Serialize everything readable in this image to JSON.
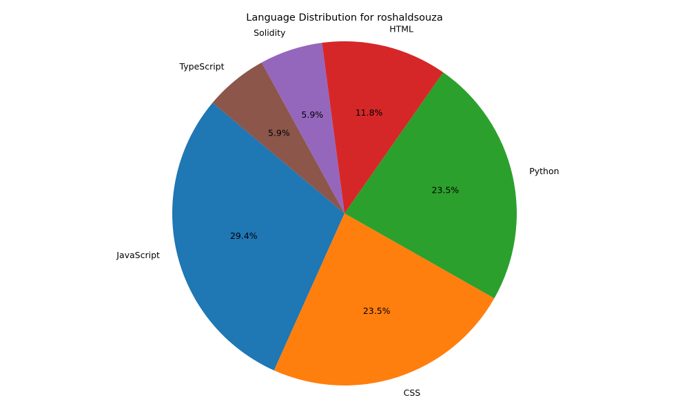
{
  "chart_data": {
    "type": "pie",
    "title": "Language Distribution for roshaldsouza",
    "labels": [
      "JavaScript",
      "CSS",
      "Python",
      "HTML",
      "Solidity",
      "TypeScript"
    ],
    "values": [
      29.4,
      23.5,
      23.5,
      11.8,
      5.9,
      5.9
    ],
    "value_labels": [
      "29.4%",
      "23.5%",
      "23.5%",
      "11.8%",
      "5.9%",
      "5.9%"
    ],
    "colors": [
      "#1f77b4",
      "#ff7f0e",
      "#2ca02c",
      "#d62728",
      "#9467bd",
      "#8c564b"
    ],
    "start_angle": 140,
    "direction": "counterclockwise"
  }
}
